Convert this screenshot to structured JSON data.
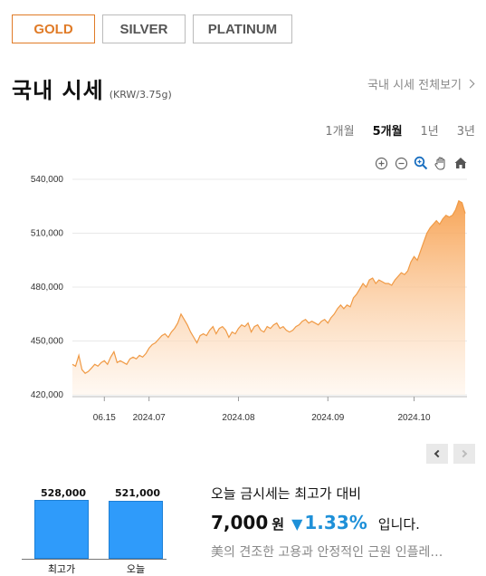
{
  "tabs": [
    {
      "label": "GOLD",
      "active": true
    },
    {
      "label": "SILVER",
      "active": false
    },
    {
      "label": "PLATINUM",
      "active": false
    }
  ],
  "header": {
    "title": "국내 시세",
    "unit": "(KRW/3.75g)",
    "view_all": "국내 시세 전체보기"
  },
  "periods": [
    {
      "label": "1개월",
      "active": false
    },
    {
      "label": "5개월",
      "active": true
    },
    {
      "label": "1년",
      "active": false
    },
    {
      "label": "3년",
      "active": false
    }
  ],
  "tool_icons": [
    "zoom-in-icon",
    "zoom-out-icon",
    "magnifier-icon",
    "pan-hand-icon",
    "home-icon"
  ],
  "colors": {
    "accent": "#e07b27",
    "line": "#f0a050",
    "down": "#1e90d8",
    "bar": "#2f9bfa"
  },
  "chart_data": {
    "type": "area",
    "ylim": [
      420000,
      540000
    ],
    "y_ticks": [
      {
        "value": 540000,
        "label": "540,000"
      },
      {
        "value": 510000,
        "label": "510,000"
      },
      {
        "value": 480000,
        "label": "480,000"
      },
      {
        "value": 450000,
        "label": "450,000"
      },
      {
        "value": 420000,
        "label": "420,000"
      }
    ],
    "x_ticks": [
      {
        "index": 10,
        "label": "06.15"
      },
      {
        "index": 24,
        "label": "2024.07"
      },
      {
        "index": 52,
        "label": "2024.08"
      },
      {
        "index": 80,
        "label": "2024.09"
      },
      {
        "index": 107,
        "label": "2024.10"
      }
    ],
    "values": [
      437000,
      436000,
      442000,
      434000,
      432000,
      433000,
      435000,
      437000,
      436000,
      438000,
      439000,
      437000,
      441000,
      444000,
      438000,
      439000,
      438000,
      437000,
      440000,
      441000,
      440000,
      442000,
      441000,
      443000,
      446000,
      448000,
      449000,
      451000,
      453000,
      454000,
      452000,
      455000,
      457000,
      460000,
      465000,
      462000,
      459000,
      455000,
      452000,
      449000,
      453000,
      454000,
      453000,
      456000,
      458000,
      454000,
      457000,
      458000,
      456000,
      452000,
      455000,
      454000,
      457000,
      459000,
      458000,
      460000,
      455000,
      458000,
      459000,
      456000,
      455000,
      458000,
      457000,
      459000,
      460000,
      457000,
      458000,
      456000,
      455000,
      456000,
      458000,
      459000,
      461000,
      462000,
      460000,
      461000,
      460000,
      459000,
      461000,
      462000,
      460000,
      463000,
      465000,
      468000,
      470000,
      468000,
      470000,
      469000,
      474000,
      476000,
      479000,
      482000,
      480000,
      484000,
      485000,
      482000,
      484000,
      483000,
      482000,
      482000,
      481000,
      484000,
      486000,
      488000,
      487000,
      489000,
      494000,
      497000,
      495000,
      500000,
      505000,
      510000,
      513000,
      515000,
      517000,
      515000,
      518000,
      520000,
      519000,
      520000,
      523000,
      528000,
      527000,
      521000
    ]
  },
  "pager_icons": [
    "chevron-left-icon",
    "chevron-right-icon"
  ],
  "compare": {
    "bars": [
      {
        "label": "최고가",
        "value": 528000,
        "display": "528,000"
      },
      {
        "label": "오늘",
        "value": 521000,
        "display": "521,000"
      }
    ]
  },
  "summary": {
    "line1": "오늘 금시세는 최고가 대비",
    "diff": "7,000",
    "diff_unit": "원",
    "arrow": "▼",
    "percent": "1.33%",
    "tail": "입니다.",
    "news": "美의 견조한 고용과 안정적인 근원 인플레…"
  }
}
